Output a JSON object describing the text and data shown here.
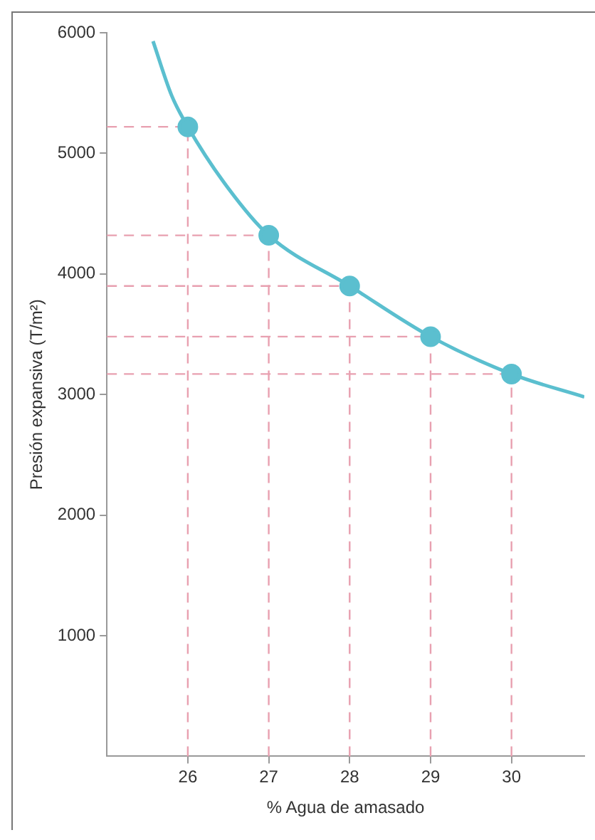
{
  "chart_data": {
    "type": "line",
    "xlabel": "% Agua de amasado",
    "ylabel": "Presión expansiva (T/m²)",
    "xlim": [
      25,
      30.9
    ],
    "xticks": [
      26,
      27,
      28,
      29,
      30
    ],
    "ylim": [
      0,
      6000
    ],
    "yticks": [
      1000,
      2000,
      3000,
      4000,
      5000,
      6000
    ],
    "grid": false,
    "legend": false,
    "series": [
      {
        "type": "line",
        "color": "#5bbfcf",
        "marker": "none",
        "x": [
          25.57,
          25.8,
          26,
          26.5,
          27,
          28,
          29,
          30,
          30.9
        ],
        "values": [
          5930,
          5480,
          5220,
          4710,
          4320,
          3900,
          3480,
          3170,
          2980
        ]
      },
      {
        "type": "scatter",
        "color": "#5bbfcf",
        "marker": "circle",
        "x": [
          26,
          27,
          28,
          29,
          30
        ],
        "values": [
          5220,
          4320,
          3900,
          3480,
          3170
        ]
      }
    ],
    "ref_lines": [
      {
        "axis": "x",
        "value": 26,
        "color": "#e8a0b0",
        "line_style": "dashed"
      },
      {
        "axis": "x",
        "value": 27,
        "color": "#e8a0b0",
        "line_style": "dashed"
      },
      {
        "axis": "x",
        "value": 28,
        "color": "#e8a0b0",
        "line_style": "dashed"
      },
      {
        "axis": "x",
        "value": 29,
        "color": "#e8a0b0",
        "line_style": "dashed"
      },
      {
        "axis": "x",
        "value": 30,
        "color": "#e8a0b0",
        "line_style": "dashed"
      },
      {
        "axis": "y",
        "value": 5220,
        "color": "#e8a0b0",
        "line_style": "dashed"
      },
      {
        "axis": "y",
        "value": 4320,
        "color": "#e8a0b0",
        "line_style": "dashed"
      },
      {
        "axis": "y",
        "value": 3900,
        "color": "#e8a0b0",
        "line_style": "dashed"
      },
      {
        "axis": "y",
        "value": 3480,
        "color": "#e8a0b0",
        "line_style": "dashed"
      },
      {
        "axis": "y",
        "value": 3170,
        "color": "#e8a0b0",
        "line_style": "dashed"
      }
    ]
  }
}
